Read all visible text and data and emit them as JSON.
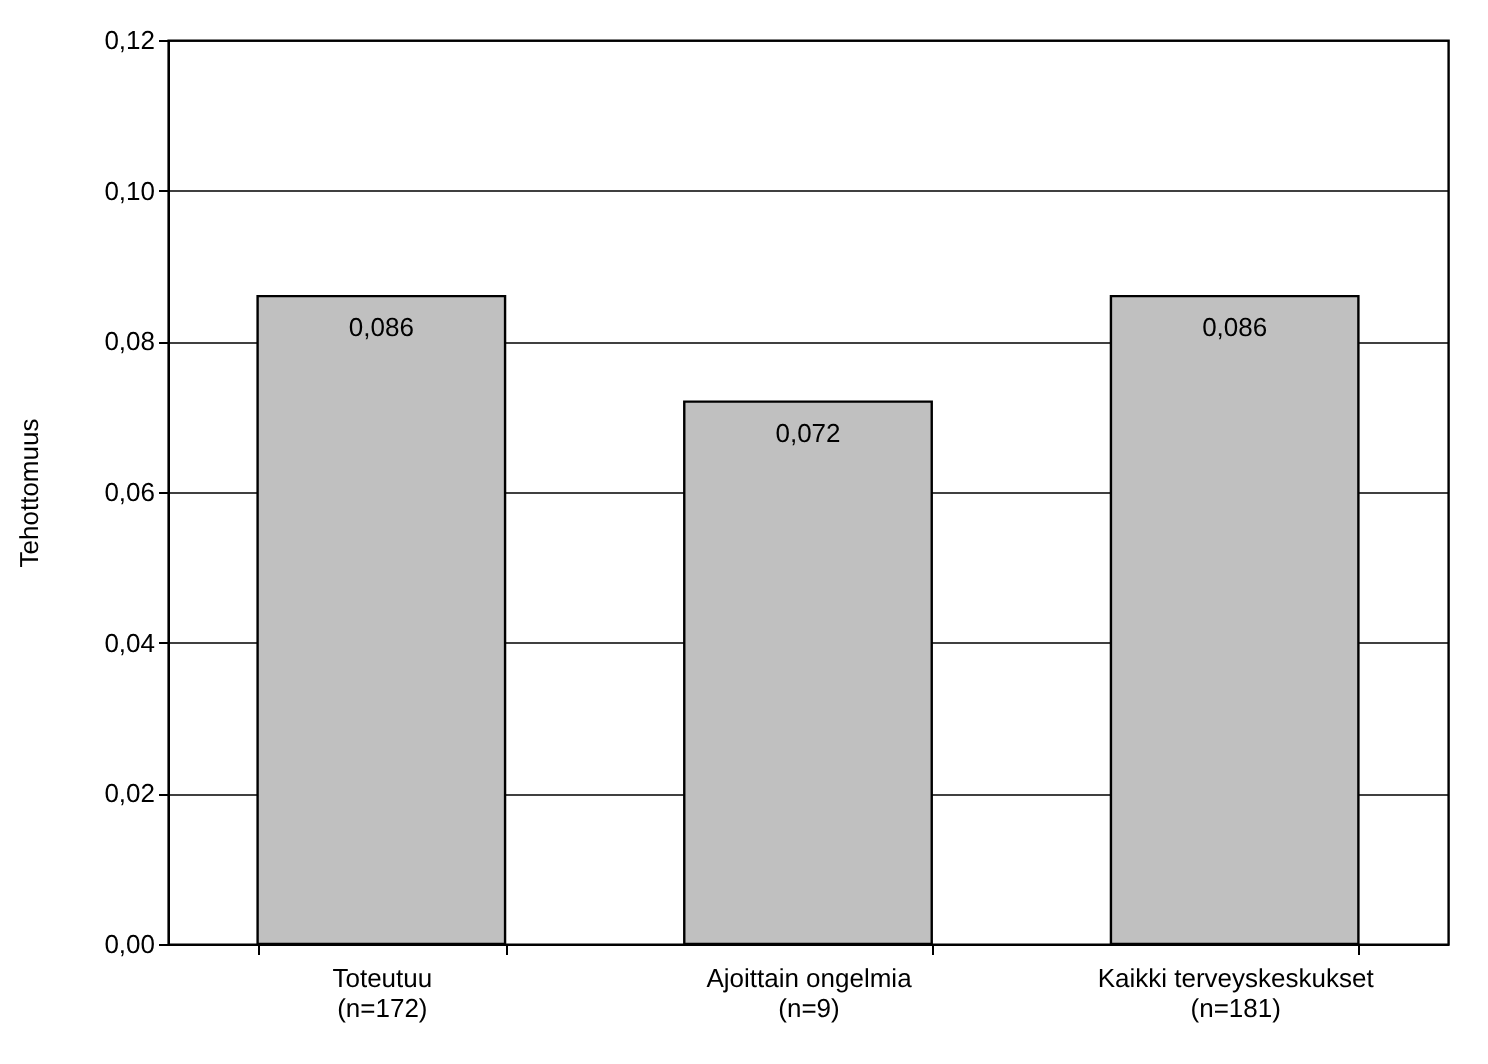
{
  "chart_data": {
    "type": "bar",
    "ylabel": "Tehottomuus",
    "categories": [
      "Toteutuu\n(n=172)",
      "Ajoittain ongelmia\n(n=9)",
      "Kaikki terveyskeskukset\n(n=181)"
    ],
    "values": [
      0.086,
      0.072,
      0.086
    ],
    "value_labels": [
      "0,086",
      "0,072",
      "0,086"
    ],
    "color": "#c0c0c0",
    "ylim": [
      0,
      0.12
    ],
    "yticks": [
      {
        "value": 0,
        "label": "0,00"
      },
      {
        "value": 0.02,
        "label": "0,02"
      },
      {
        "value": 0.04,
        "label": "0,04"
      },
      {
        "value": 0.06,
        "label": "0,06"
      },
      {
        "value": 0.08,
        "label": "0,08"
      },
      {
        "value": 0.1,
        "label": "0,10"
      },
      {
        "value": 0.12,
        "label": "0,12"
      }
    ],
    "grid": "y"
  }
}
